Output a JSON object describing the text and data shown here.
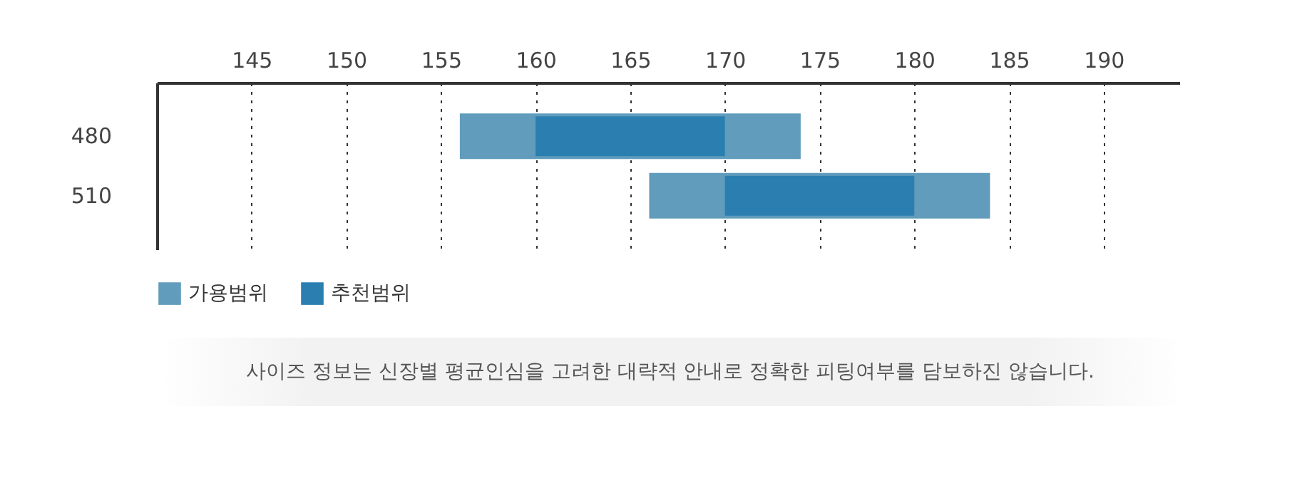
{
  "chart_data": {
    "type": "bar",
    "orientation": "horizontal",
    "categories": [
      "480",
      "510"
    ],
    "series": [
      {
        "name": "가용범위",
        "color": "#619cbc",
        "base": [
          156,
          166
        ],
        "values": [
          18,
          18
        ]
      },
      {
        "name": "추천범위",
        "color": "#2b7fb0",
        "base": [
          160,
          170
        ],
        "values": [
          10,
          10
        ]
      }
    ],
    "xlim": [
      140,
      194
    ],
    "xticks": [
      145,
      150,
      155,
      160,
      165,
      170,
      175,
      180,
      185,
      190
    ],
    "grid": "x",
    "legend": "bottom left",
    "annotations": [
      "사이즈 정보는 신장별 평균인심을 고려한 대략적 안내로 정확한 피팅여부를 담보하진 않습니다."
    ]
  }
}
